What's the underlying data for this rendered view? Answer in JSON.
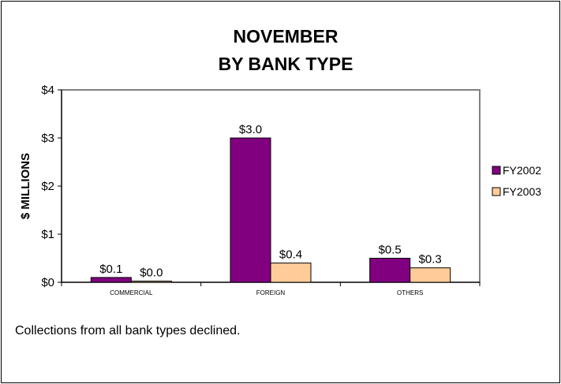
{
  "chart_data": {
    "type": "bar",
    "title_lines": [
      "NOVEMBER",
      "BY BANK TYPE"
    ],
    "xlabel": "",
    "ylabel": "$ MILLIONS",
    "categories": [
      "COMMERCIAL",
      "FOREIGN",
      "OTHERS"
    ],
    "ylim": [
      0,
      4
    ],
    "yticks": [
      0,
      1,
      2,
      3,
      4
    ],
    "ytick_labels": [
      "$0",
      "$1",
      "$2",
      "$3",
      "$4"
    ],
    "grid": false,
    "legend_position": "right",
    "series": [
      {
        "name": "FY2002",
        "color": "#800080",
        "values": [
          0.1,
          3.0,
          0.5
        ],
        "labels": [
          "$0.1",
          "$3.0",
          "$0.5"
        ]
      },
      {
        "name": "FY2003",
        "color": "#FFCC99",
        "values": [
          0.0,
          0.4,
          0.3
        ],
        "labels": [
          "$0.0",
          "$0.4",
          "$0.3"
        ]
      }
    ]
  },
  "note": "Collections from all bank types declined."
}
